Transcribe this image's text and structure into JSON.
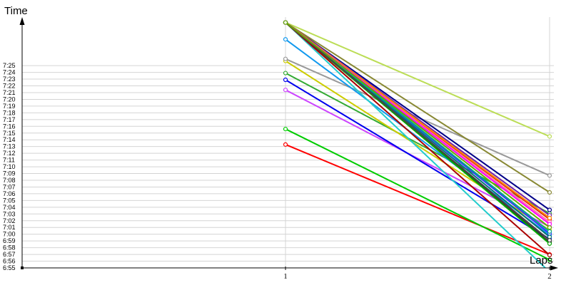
{
  "chart_data": {
    "type": "line",
    "xlabel": "Laps",
    "ylabel": "Time",
    "x": [
      1,
      2
    ],
    "x_tick_labels": [
      "1",
      "2"
    ],
    "y_tick_labels": [
      "7:25",
      "7:24",
      "7:23",
      "7:22",
      "7:21",
      "7:20",
      "7:19",
      "7:18",
      "7:17",
      "7:16",
      "7:15",
      "7:14",
      "7:13",
      "7:12",
      "7:11",
      "7:10",
      "7:09",
      "7:08",
      "7:07",
      "7:06",
      "7:05",
      "7:04",
      "7:03",
      "7:02",
      "7:01",
      "7:00",
      "6:59",
      "6:58",
      "6:57",
      "6:56",
      "6:55"
    ],
    "ylim_seconds": [
      415,
      452.2
    ],
    "grid": true,
    "legend": "none",
    "series": [
      {
        "color": "#FF0000",
        "values": [
          433.3,
          417.0
        ]
      },
      {
        "color": "#00CC00",
        "values": [
          435.6,
          416.2
        ]
      },
      {
        "color": "#CC44FF",
        "values": [
          441.4,
          421.1
        ]
      },
      {
        "color": "#0000EE",
        "values": [
          442.9,
          419.3
        ]
      },
      {
        "color": "#33AA33",
        "values": [
          443.9,
          423.1
        ]
      },
      {
        "color": "#CCCC00",
        "values": [
          445.7,
          420.6
        ]
      },
      {
        "color": "#999999",
        "values": [
          446.0,
          428.7
        ]
      },
      {
        "color": "#1199EE",
        "values": [
          448.9,
          419.9
        ]
      },
      {
        "color": "#000088",
        "values": [
          451.4,
          423.6
        ]
      },
      {
        "color": "#BBDD55",
        "values": [
          451.4,
          434.5
        ]
      },
      {
        "color": "#888833",
        "values": [
          451.4,
          426.2
        ]
      },
      {
        "color": "#22CCCC",
        "values": [
          451.4,
          414.4
        ]
      },
      {
        "color": "#333333",
        "values": [
          451.4,
          418.8
        ]
      },
      {
        "color": "#DD2200",
        "values": [
          451.4,
          422.2
        ]
      },
      {
        "color": "#FF77AA",
        "values": [
          451.4,
          421.8
        ]
      },
      {
        "color": "#7722AA",
        "values": [
          451.4,
          422.8
        ]
      },
      {
        "color": "#00AA00",
        "values": [
          451.4,
          418.6
        ]
      },
      {
        "color": "#FF8800",
        "values": [
          451.4,
          422.4
        ]
      },
      {
        "color": "#3333FF",
        "values": [
          451.4,
          420.1
        ]
      },
      {
        "color": "#FF00FF",
        "values": [
          451.4,
          421.5
        ]
      },
      {
        "color": "#007777",
        "values": [
          451.4,
          419.6
        ]
      },
      {
        "color": "#00AA88",
        "values": [
          451.4,
          420.4
        ]
      },
      {
        "color": "#AA0000",
        "values": [
          451.4,
          416.9
        ]
      },
      {
        "color": "#444444",
        "values": [
          451.4,
          419.1
        ]
      },
      {
        "color": "#66AA00",
        "values": [
          451.4,
          421.0
        ]
      }
    ]
  }
}
